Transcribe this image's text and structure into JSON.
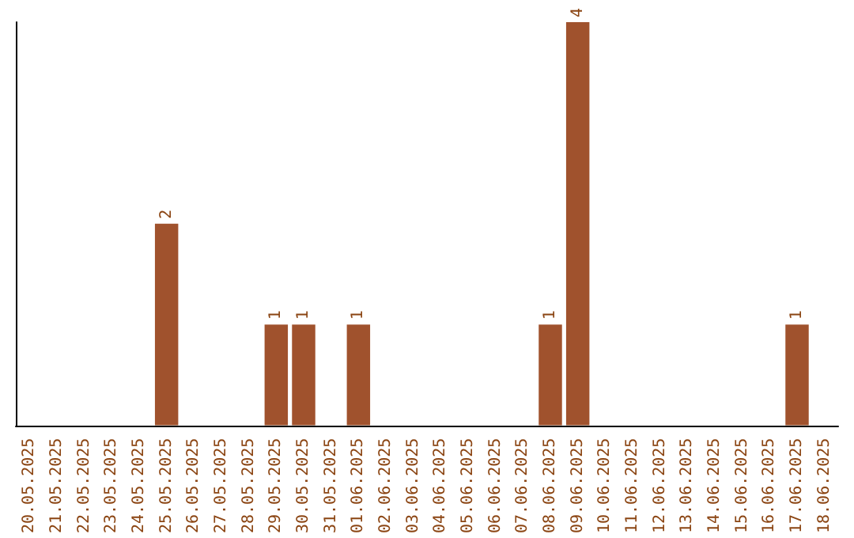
{
  "chart_data": {
    "type": "bar",
    "categories": [
      "20.05.2025",
      "21.05.2025",
      "22.05.2025",
      "23.05.2025",
      "24.05.2025",
      "25.05.2025",
      "26.05.2025",
      "27.05.2025",
      "28.05.2025",
      "29.05.2025",
      "30.05.2025",
      "31.05.2025",
      "01.06.2025",
      "02.06.2025",
      "03.06.2025",
      "04.06.2025",
      "05.06.2025",
      "06.06.2025",
      "07.06.2025",
      "08.06.2025",
      "09.06.2025",
      "10.06.2025",
      "11.06.2025",
      "12.06.2025",
      "13.06.2025",
      "14.06.2025",
      "15.06.2025",
      "16.06.2025",
      "17.06.2025",
      "18.06.2025"
    ],
    "values": [
      0,
      0,
      0,
      0,
      0,
      2,
      0,
      0,
      0,
      1,
      1,
      0,
      1,
      0,
      0,
      0,
      0,
      0,
      0,
      1,
      4,
      0,
      0,
      0,
      0,
      0,
      0,
      0,
      1,
      0
    ],
    "value_labels": [
      null,
      null,
      null,
      null,
      null,
      "2",
      null,
      null,
      null,
      "1",
      "1",
      null,
      "1",
      null,
      null,
      null,
      null,
      null,
      null,
      "1",
      "4",
      null,
      null,
      null,
      null,
      null,
      null,
      null,
      "1",
      null
    ],
    "color": "#a0522d",
    "tick_labels": "x",
    "grid": false
  }
}
